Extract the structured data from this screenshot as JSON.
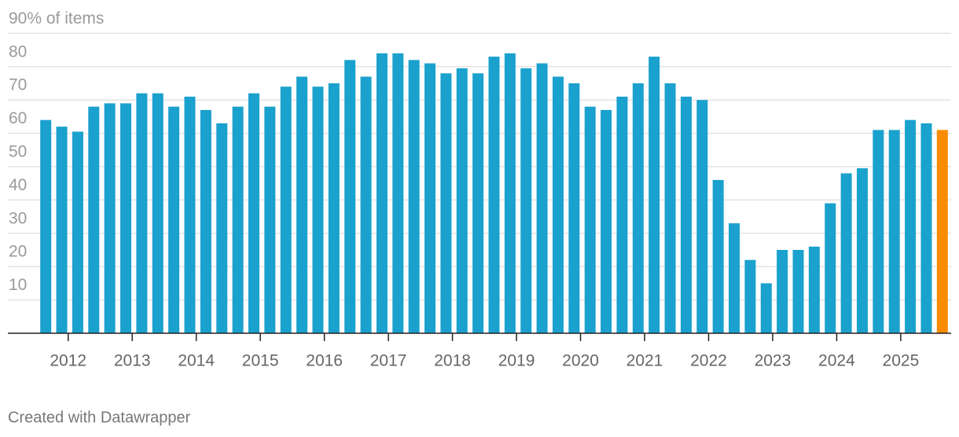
{
  "chart_data": {
    "type": "bar",
    "categories": [
      null,
      null,
      "2012",
      null,
      null,
      null,
      "2013",
      null,
      null,
      null,
      "2014",
      null,
      null,
      null,
      "2015",
      null,
      null,
      null,
      "2016",
      null,
      null,
      null,
      "2017",
      null,
      null,
      null,
      "2018",
      null,
      null,
      null,
      "2019",
      null,
      null,
      null,
      "2020",
      null,
      null,
      null,
      "2021",
      null,
      null,
      null,
      "2022",
      null,
      null,
      null,
      "2023",
      null,
      null,
      null,
      "2024",
      null,
      null,
      null,
      "2025",
      null,
      null
    ],
    "values": [
      64,
      62,
      60.5,
      68,
      69,
      69,
      72,
      72,
      68,
      71,
      67,
      63,
      68,
      72,
      68,
      74,
      77,
      74,
      75,
      82,
      77,
      84,
      84,
      82,
      81,
      78,
      79.5,
      78,
      83,
      84,
      79.5,
      81,
      77,
      75,
      68,
      67,
      71,
      75,
      83,
      75,
      71,
      70,
      46,
      33,
      22,
      15,
      25,
      25,
      26,
      39,
      48,
      49.5,
      61,
      61,
      64,
      63,
      61
    ],
    "color": "#1aa1cd",
    "highlight_last": true,
    "highlight_color": "#fa8c00",
    "ylim": [
      0,
      90
    ],
    "yticks": [
      10,
      20,
      30,
      40,
      50,
      60,
      70,
      80,
      {
        "value": 90,
        "label": "90% of items"
      }
    ],
    "grid": true,
    "credit": "Created with Datawrapper"
  }
}
